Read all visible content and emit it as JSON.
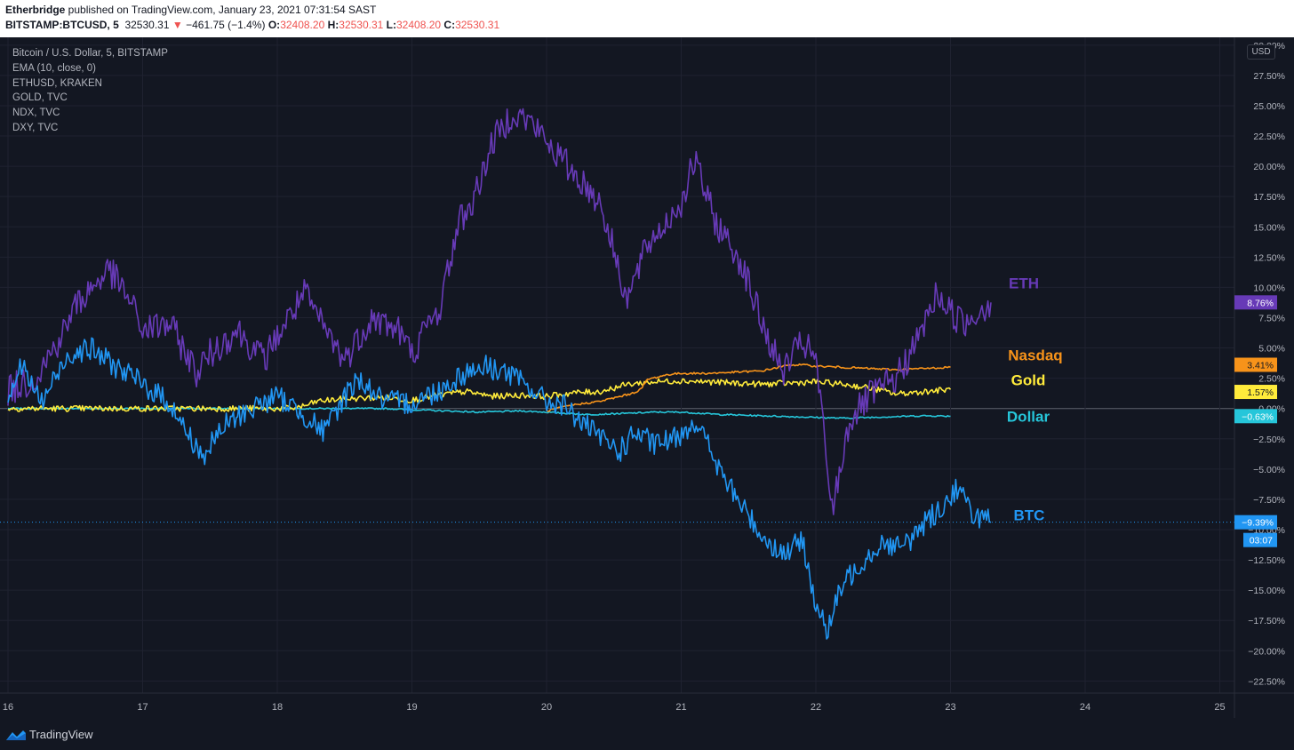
{
  "header": {
    "publisher": "Etherbridge",
    "published_text": " published on TradingView.com, January 23, 2021 07:31:54 SAST",
    "symbol": "BITSTAMP:BTCUSD, 5",
    "last": "32530.31",
    "change": "−461.75 (−1.4%)",
    "o_label": "O:",
    "o": "32408.20",
    "h_label": "H:",
    "h": "32530.31",
    "l_label": "L:",
    "l": "32408.20",
    "c_label": "C:",
    "c": "32530.31"
  },
  "legend": [
    "Bitcoin / U.S. Dollar, 5, BITSTAMP",
    "EMA (10, close, 0)",
    "ETHUSD, KRAKEN",
    "GOLD, TVC",
    "NDX, TVC",
    "DXY, TVC"
  ],
  "currency_badge": "USD",
  "footer": {
    "brand": "TradingView"
  },
  "colors": {
    "background": "#131722",
    "btc": "#2196f3",
    "eth": "#673ab7",
    "nasdaq": "#f7931a",
    "gold": "#ffeb3b",
    "dollar": "#26c6da",
    "grid": "#1f2230"
  },
  "chart_data": {
    "type": "line",
    "ylabel": "",
    "xlabel": "",
    "y_scale": "percent",
    "ylim": [
      -23.5,
      30.5
    ],
    "x_ticks": [
      "16",
      "17",
      "18",
      "19",
      "20",
      "21",
      "22",
      "23",
      "24",
      "25"
    ],
    "xlim_days": [
      16,
      25.1
    ],
    "y_ticks": [
      "30.00%",
      "27.50%",
      "25.00%",
      "22.50%",
      "20.00%",
      "17.50%",
      "15.00%",
      "12.50%",
      "10.00%",
      "7.50%",
      "5.00%",
      "2.50%",
      "0.00%",
      "−2.50%",
      "−5.00%",
      "−7.50%",
      "−10.00%",
      "−12.50%",
      "−15.00%",
      "−17.50%",
      "−20.00%",
      "−22.50%"
    ],
    "series": [
      {
        "name": "ETH",
        "label": "ETH",
        "color": "#673ab7",
        "last_value": 8.76,
        "last_label": "8.76%",
        "x": [
          16.0,
          16.2,
          16.4,
          16.5,
          16.75,
          16.9,
          17.0,
          17.2,
          17.4,
          17.5,
          17.7,
          17.9,
          18.0,
          18.2,
          18.3,
          18.5,
          18.7,
          18.9,
          19.0,
          19.1,
          19.2,
          19.35,
          19.45,
          19.6,
          19.75,
          19.9,
          20.0,
          20.2,
          20.4,
          20.55,
          20.6,
          20.75,
          20.9,
          21.0,
          21.1,
          21.25,
          21.45,
          21.6,
          21.75,
          21.9,
          22.0,
          22.12,
          22.25,
          22.4,
          22.6,
          22.75,
          22.9,
          23.0,
          23.1,
          23.2,
          23.3
        ],
        "y": [
          1.5,
          2.5,
          6.0,
          8.5,
          11.5,
          9.0,
          6.5,
          7.0,
          3.0,
          4.5,
          6.5,
          4.0,
          6.0,
          9.5,
          7.5,
          4.0,
          7.5,
          6.5,
          4.5,
          6.5,
          8.0,
          15.5,
          17.0,
          22.0,
          24.5,
          23.5,
          22.0,
          19.5,
          17.0,
          11.0,
          9.0,
          13.5,
          15.5,
          17.0,
          20.5,
          15.5,
          12.0,
          7.0,
          3.0,
          5.5,
          4.0,
          -8.5,
          -1.0,
          1.0,
          2.5,
          5.5,
          9.5,
          8.0,
          7.0,
          8.0,
          8.76
        ]
      },
      {
        "name": "Nasdaq",
        "label": "Nasdaq",
        "color": "#f7931a",
        "last_value": 3.41,
        "last_label": "3.41%",
        "x": [
          20.0,
          20.2,
          20.4,
          20.55,
          20.65,
          20.7,
          20.75,
          20.9,
          21.0,
          21.2,
          21.4,
          21.6,
          21.8,
          21.9,
          22.0,
          22.2,
          22.4,
          22.6,
          22.8,
          23.0
        ],
        "y": [
          -0.2,
          0.3,
          0.6,
          1.0,
          1.3,
          1.6,
          2.4,
          2.8,
          2.9,
          2.9,
          3.0,
          3.1,
          3.6,
          3.6,
          3.5,
          3.4,
          3.3,
          3.2,
          3.3,
          3.41
        ]
      },
      {
        "name": "Gold",
        "label": "Gold",
        "color": "#ffeb3b",
        "last_value": 1.57,
        "last_label": "1.57%",
        "x": [
          16.0,
          16.5,
          17.0,
          17.5,
          18.0,
          18.1,
          18.2,
          18.3,
          18.5,
          18.8,
          19.0,
          19.2,
          19.4,
          19.6,
          19.8,
          20.0,
          20.2,
          20.4,
          20.6,
          20.8,
          21.0,
          21.2,
          21.4,
          21.6,
          21.8,
          22.0,
          22.2,
          22.4,
          22.6,
          22.8,
          23.0
        ],
        "y": [
          0.0,
          0.0,
          0.0,
          0.0,
          0.0,
          0.0,
          0.2,
          0.6,
          0.8,
          0.9,
          0.7,
          1.1,
          1.4,
          1.0,
          1.1,
          1.0,
          1.3,
          1.4,
          2.0,
          2.2,
          2.3,
          2.2,
          2.1,
          2.0,
          2.1,
          2.2,
          2.0,
          1.7,
          1.2,
          1.4,
          1.57
        ]
      },
      {
        "name": "Dollar",
        "label": "Dollar",
        "color": "#26c6da",
        "last_value": -0.63,
        "last_label": "−0.63%",
        "x": [
          16.0,
          17.0,
          18.0,
          18.8,
          19.0,
          19.5,
          19.8,
          20.0,
          20.3,
          20.6,
          20.8,
          21.0,
          21.3,
          21.6,
          21.9,
          22.2,
          22.5,
          22.8,
          23.0
        ],
        "y": [
          0.0,
          0.0,
          0.0,
          0.0,
          -0.1,
          -0.3,
          -0.2,
          -0.3,
          -0.5,
          -0.4,
          -0.3,
          -0.3,
          -0.5,
          -0.6,
          -0.7,
          -0.8,
          -0.7,
          -0.6,
          -0.63
        ]
      },
      {
        "name": "BTC",
        "label": "BTC",
        "color": "#2196f3",
        "last_value": -9.39,
        "last_label": "−9.39%",
        "countdown": "03:07",
        "x": [
          16.0,
          16.1,
          16.25,
          16.45,
          16.6,
          16.8,
          17.0,
          17.2,
          17.3,
          17.45,
          17.6,
          17.8,
          18.0,
          18.2,
          18.35,
          18.5,
          18.6,
          18.8,
          19.0,
          19.2,
          19.4,
          19.55,
          19.7,
          19.9,
          20.0,
          20.1,
          20.25,
          20.4,
          20.55,
          20.65,
          20.8,
          20.95,
          21.1,
          21.2,
          21.3,
          21.45,
          21.6,
          21.75,
          21.9,
          22.0,
          22.08,
          22.2,
          22.35,
          22.5,
          22.65,
          22.8,
          22.95,
          23.05,
          23.15,
          23.3
        ],
        "y": [
          1.0,
          3.5,
          0.5,
          4.5,
          5.0,
          3.5,
          2.0,
          0.5,
          -1.5,
          -4.0,
          -1.5,
          0.0,
          1.0,
          -0.5,
          -2.0,
          1.0,
          2.5,
          0.5,
          0.5,
          1.5,
          3.0,
          3.5,
          3.0,
          1.5,
          0.5,
          0.5,
          -1.0,
          -2.5,
          -3.5,
          -2.0,
          -3.0,
          -2.5,
          -1.0,
          -3.0,
          -5.5,
          -8.0,
          -10.5,
          -12.0,
          -11.0,
          -16.0,
          -18.5,
          -14.5,
          -12.5,
          -11.0,
          -11.5,
          -9.5,
          -8.0,
          -6.5,
          -8.5,
          -9.39
        ]
      }
    ]
  }
}
